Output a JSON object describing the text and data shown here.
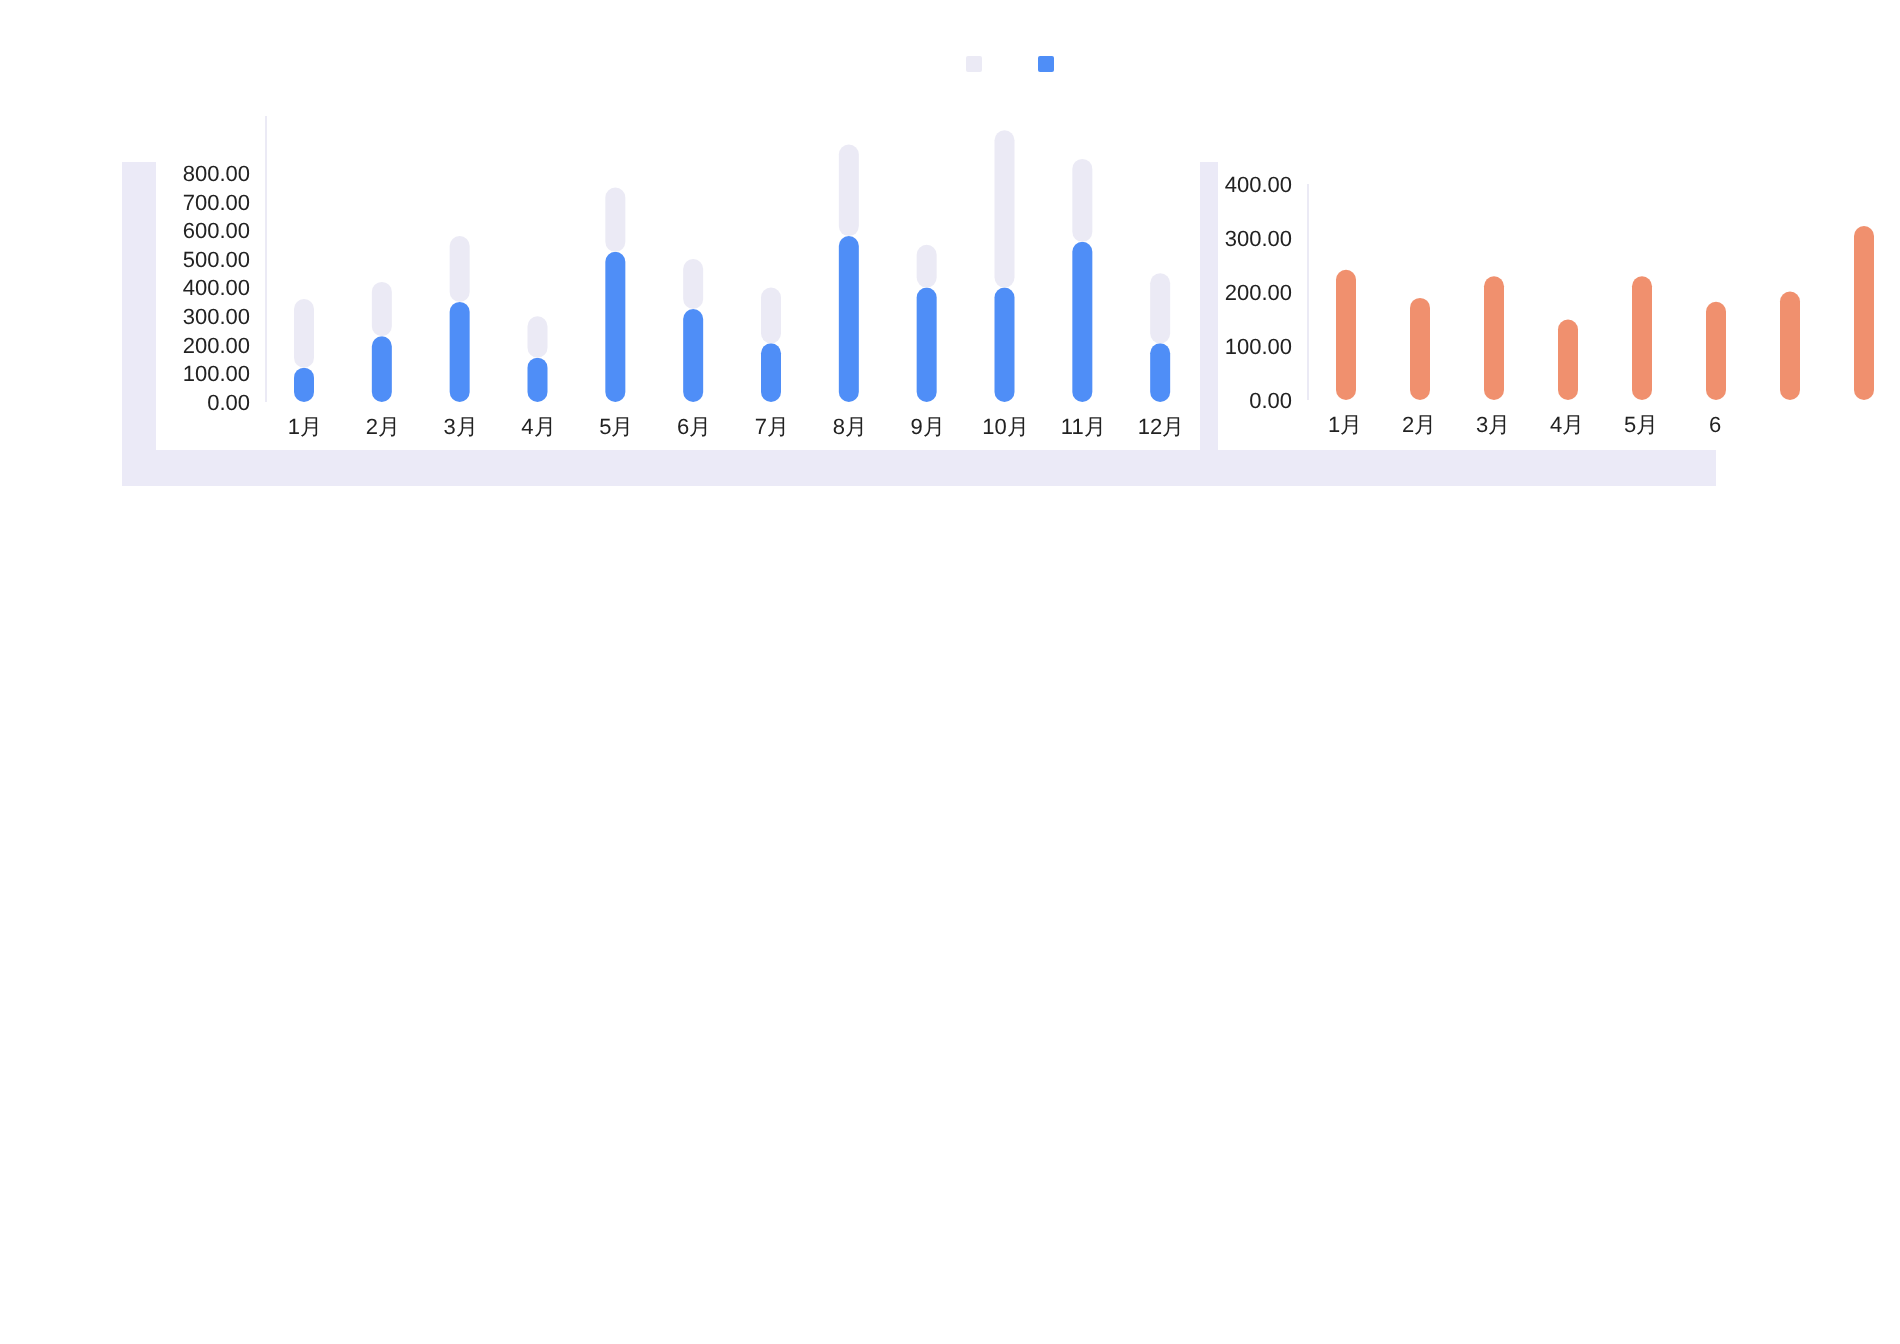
{
  "chart_data": [
    {
      "type": "bar",
      "categories": [
        "1月",
        "2月",
        "3月",
        "4月",
        "5月",
        "6月",
        "7月",
        "8月",
        "9月",
        "10月",
        "11月",
        "12月"
      ],
      "series": [
        {
          "color": "#4f8ef7",
          "values": [
            120,
            230,
            350,
            155,
            525,
            325,
            205,
            580,
            400,
            400,
            560,
            205
          ]
        },
        {
          "color": "#ebeaf5",
          "values": [
            240,
            190,
            230,
            145,
            225,
            175,
            195,
            320,
            150,
            550,
            290,
            245
          ]
        }
      ],
      "stacked": true,
      "ylim": [
        0,
        1000
      ],
      "yticks": [
        {
          "value": 0,
          "label": "0.00"
        },
        {
          "value": 100,
          "label": "100.00"
        },
        {
          "value": 200,
          "label": "200.00"
        },
        {
          "value": 300,
          "label": "300.00"
        },
        {
          "value": 400,
          "label": "400.00"
        },
        {
          "value": 500,
          "label": "500.00"
        },
        {
          "value": 600,
          "label": "600.00"
        },
        {
          "value": 700,
          "label": "700.00"
        },
        {
          "value": 800,
          "label": "800.00"
        }
      ],
      "grid": false
    },
    {
      "type": "bar",
      "categories": [
        "1月",
        "2月",
        "3月",
        "4月",
        "5月",
        "6",
        null,
        null
      ],
      "series": [
        {
          "color": "#f0906e",
          "values": [
            241,
            189,
            229,
            149,
            229,
            182,
            201,
            322
          ]
        }
      ],
      "ylim": [
        0,
        400
      ],
      "yticks": [
        {
          "value": 0,
          "label": "0.00"
        },
        {
          "value": 100,
          "label": "100.00"
        },
        {
          "value": 200,
          "label": "200.00"
        },
        {
          "value": 300,
          "label": "300.00"
        },
        {
          "value": 400,
          "label": "400.00"
        }
      ],
      "grid": false
    }
  ]
}
